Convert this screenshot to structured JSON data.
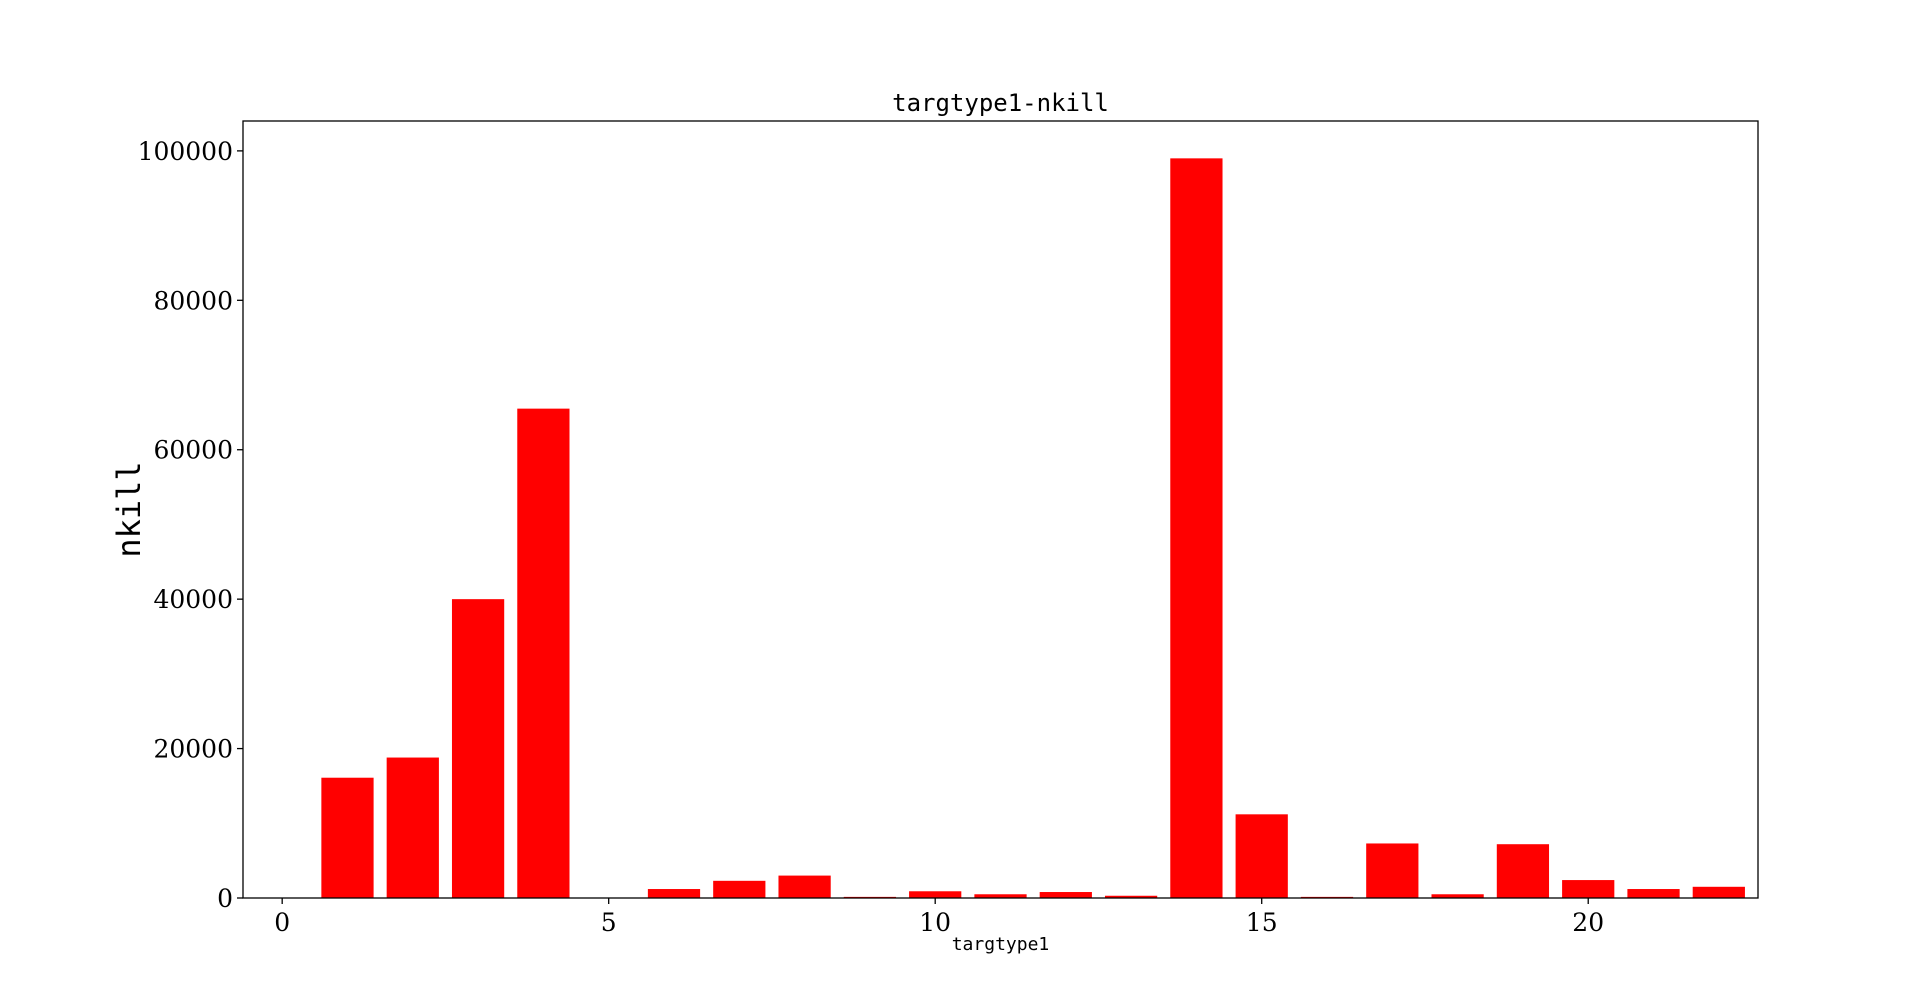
{
  "chart_data": {
    "type": "bar",
    "title": "targtype1-nkill",
    "xlabel": "targtype1",
    "ylabel": "nkill",
    "x": [
      1,
      2,
      3,
      4,
      5,
      6,
      7,
      8,
      9,
      10,
      11,
      12,
      13,
      14,
      15,
      16,
      17,
      18,
      19,
      20,
      21,
      22
    ],
    "values": [
      16100,
      18800,
      40000,
      65500,
      0,
      1200,
      2300,
      3000,
      150,
      900,
      500,
      800,
      300,
      99000,
      11200,
      150,
      7300,
      500,
      7200,
      2400,
      1200,
      1500
    ],
    "xlim": [
      -0.6,
      22.6
    ],
    "ylim": [
      0,
      104000
    ],
    "xticks": [
      0,
      5,
      10,
      15,
      20
    ],
    "yticks": [
      0,
      20000,
      40000,
      60000,
      80000,
      100000
    ],
    "bar_color": "#ff0000",
    "grid": false,
    "legend": "none"
  }
}
